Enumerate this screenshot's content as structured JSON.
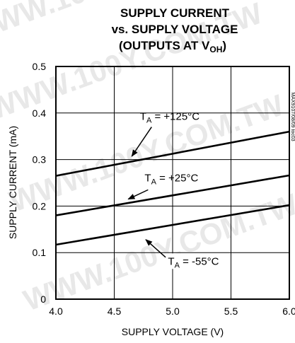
{
  "chart_data": {
    "type": "line",
    "title_lines": [
      "SUPPLY CURRENT",
      "vs. SUPPLY VOLTAGE"
    ],
    "title_third_prefix": "(OUTPUTS AT V",
    "title_third_sub": "OH",
    "title_third_suffix": ")",
    "xlabel": "SUPPLY VOLTAGE (V)",
    "ylabel": "SUPPLY CURRENT (mA)",
    "xlim": [
      4.0,
      6.0
    ],
    "ylim": [
      0,
      0.5
    ],
    "x_ticks": [
      {
        "value": 4.0,
        "label": "4.0"
      },
      {
        "value": 4.5,
        "label": "4.5"
      },
      {
        "value": 5.0,
        "label": "5.0"
      },
      {
        "value": 5.5,
        "label": "5.5"
      },
      {
        "value": 6.0,
        "label": "6.0"
      }
    ],
    "y_ticks": [
      {
        "value": 0,
        "label": "0"
      },
      {
        "value": 0.1,
        "label": "0.1"
      },
      {
        "value": 0.2,
        "label": "0.2"
      },
      {
        "value": 0.3,
        "label": "0.3"
      },
      {
        "value": 0.4,
        "label": "0.4"
      },
      {
        "value": 0.5,
        "label": "0.5"
      }
    ],
    "grid": true,
    "series": [
      {
        "name": "T_A = +125°C",
        "x": [
          4.0,
          6.0
        ],
        "y": [
          0.265,
          0.36
        ]
      },
      {
        "name": "T_A = +25°C",
        "x": [
          4.0,
          6.0
        ],
        "y": [
          0.18,
          0.266
        ]
      },
      {
        "name": "T_A = -55°C",
        "x": [
          4.0,
          6.0
        ],
        "y": [
          0.117,
          0.202
        ]
      }
    ],
    "annotations": [
      {
        "main": "T",
        "sub": "A",
        "rest": " = +125°C",
        "text_at": [
          4.72,
          0.385
        ],
        "arrow_from": [
          4.82,
          0.37
        ],
        "arrow_to": [
          4.65,
          0.307
        ]
      },
      {
        "main": "T",
        "sub": "A",
        "rest": " = +25°C",
        "text_at": [
          4.76,
          0.253
        ],
        "arrow_from": [
          4.79,
          0.235
        ],
        "arrow_to": [
          4.62,
          0.215
        ]
      },
      {
        "main": "T",
        "sub": "A",
        "rest": " = -55°C",
        "text_at": [
          4.96,
          0.074
        ],
        "arrow_from": [
          4.94,
          0.09
        ],
        "arrow_to": [
          4.77,
          0.128
        ]
      }
    ],
    "side_code": "MAX9107/08/09 toc03",
    "watermark_lines": [
      "WWW.100Y.COM.TW",
      "WWW.100Y.COM.TW",
      "WWW.100Y.COM.TW",
      "WWW.100Y.COM.TW"
    ]
  }
}
